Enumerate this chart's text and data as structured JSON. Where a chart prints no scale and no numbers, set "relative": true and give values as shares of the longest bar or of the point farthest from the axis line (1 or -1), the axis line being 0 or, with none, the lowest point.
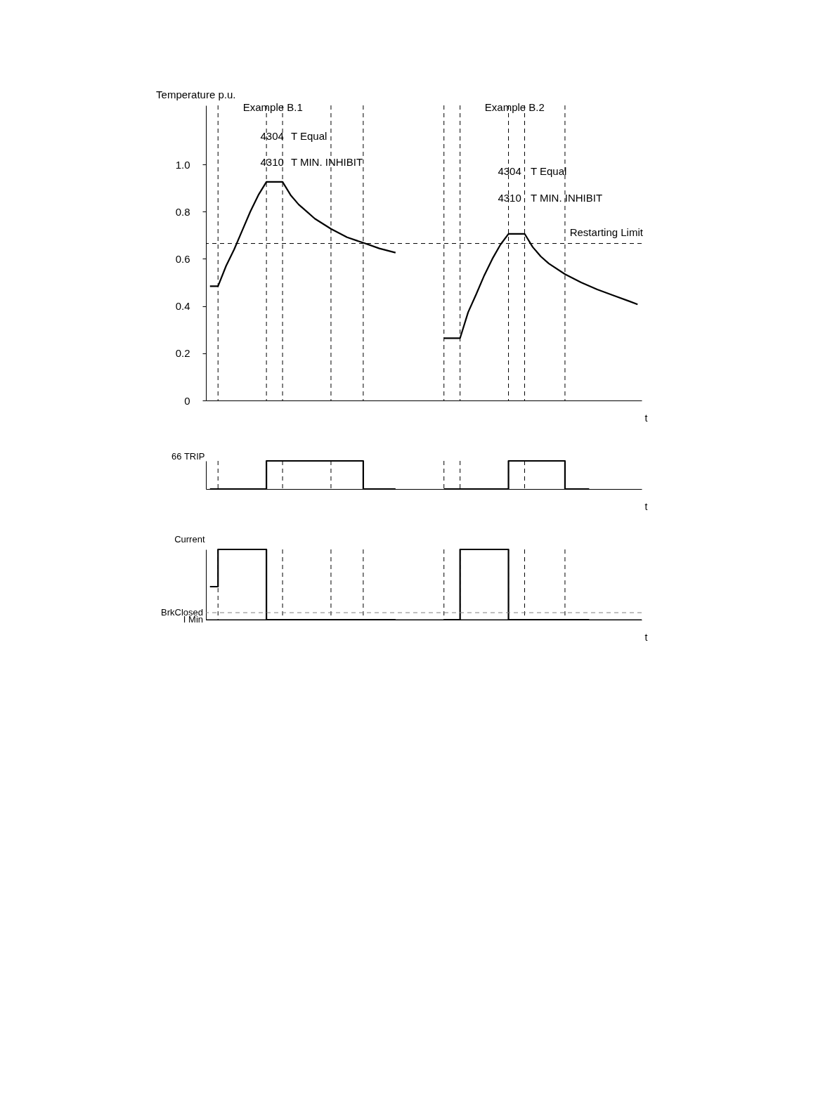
{
  "chart_data": [
    {
      "type": "line",
      "xlabel": "t",
      "ylabel": "Temperature p.u.",
      "categories": [
        null,
        null,
        null,
        null,
        null,
        null,
        null,
        null,
        null,
        null,
        null,
        null,
        null,
        null,
        null,
        null,
        null,
        null,
        null,
        null,
        null,
        null,
        null,
        null,
        null,
        null,
        null,
        null,
        null,
        null,
        null,
        null,
        null,
        null,
        null,
        null,
        null,
        null,
        null,
        null,
        null,
        null,
        null,
        null,
        null,
        null,
        null,
        null,
        null,
        null,
        null,
        null,
        null,
        null
      ],
      "ylim": [
        0,
        1.25
      ],
      "yticks": [
        0,
        0.2,
        0.4,
        0.6,
        0.8,
        {
          "value": 1,
          "label": "1.0"
        }
      ],
      "tick_labels": "y",
      "grid": "x",
      "line_style": "solid",
      "series": [
        {
          "color": "#000000",
          "values": [
            0.484,
            0.484,
            0.57,
            0.64,
            0.72,
            0.8,
            0.87,
            0.926,
            null,
            0.926,
            0.87,
            0.83,
            0.8,
            0.77,
            null,
            0.727,
            null,
            0.691,
            null,
            0.668,
            null,
            0.644,
            null,
            0.626,
            null,
            null,
            null,
            null,
            null,
            null,
            null,
            null,
            null,
            null,
            null,
            null,
            null,
            null,
            null,
            null,
            null,
            null,
            null,
            null,
            null,
            null,
            null,
            null,
            null,
            null,
            null,
            null,
            null,
            null
          ]
        },
        {
          "color": "#000000",
          "values": [
            null,
            null,
            null,
            null,
            null,
            null,
            null,
            null,
            null,
            null,
            null,
            null,
            null,
            null,
            null,
            null,
            null,
            null,
            null,
            null,
            null,
            null,
            null,
            null,
            null,
            null,
            null,
            null,
            null,
            0.264,
            null,
            0.264,
            0.374,
            0.45,
            0.53,
            0.6,
            0.66,
            0.706,
            null,
            0.706,
            0.65,
            0.61,
            0.58,
            null,
            0.535,
            null,
            0.5,
            null,
            0.47,
            null,
            0.445,
            null,
            0.42,
            0.407
          ]
        }
      ],
      "ref_lines": [
        {
          "axis": "y",
          "value": 0.665,
          "label": "Restarting Limit",
          "color": "#000000",
          "line_style": "dashed"
        }
      ],
      "annotations": [
        "Example B.1",
        "Example B.2",
        "4304",
        "T Equal",
        "4310",
        "T MIN. INHIBIT",
        "4304",
        "T Equal",
        "4310",
        "T MIN. INHIBIT"
      ]
    },
    {
      "type": "step",
      "xlabel": "t",
      "ylabel": "66 TRIP",
      "relative": true,
      "grid": "x",
      "categories": [
        null,
        null,
        null,
        null,
        null,
        null,
        null,
        null,
        null,
        null,
        null,
        null,
        null,
        null,
        null,
        null,
        null,
        null,
        null,
        null,
        null,
        null,
        null,
        null,
        null,
        null,
        null,
        null,
        null,
        null,
        null,
        null,
        null,
        null,
        null,
        null,
        null,
        null,
        null,
        null,
        null,
        null,
        null,
        null,
        null,
        null,
        null,
        null,
        null,
        null,
        null,
        null,
        null,
        null
      ],
      "tick_labels": false,
      "line_style": "solid",
      "series": [
        {
          "color": "#000000",
          "values": [
            0,
            null,
            null,
            null,
            null,
            null,
            null,
            1,
            null,
            null,
            null,
            null,
            null,
            null,
            null,
            null,
            null,
            null,
            null,
            0,
            null,
            null,
            null,
            0,
            null,
            null,
            null,
            null,
            null,
            null,
            null,
            null,
            null,
            null,
            null,
            null,
            null,
            null,
            null,
            null,
            null,
            null,
            null,
            null,
            null,
            null,
            null,
            null,
            null,
            null,
            null,
            null,
            null,
            null
          ]
        },
        {
          "color": "#000000",
          "values": [
            null,
            null,
            null,
            null,
            null,
            null,
            null,
            null,
            null,
            null,
            null,
            null,
            null,
            null,
            null,
            null,
            null,
            null,
            null,
            null,
            null,
            null,
            null,
            null,
            null,
            null,
            null,
            null,
            null,
            0,
            null,
            null,
            null,
            null,
            null,
            null,
            null,
            1,
            null,
            null,
            null,
            null,
            null,
            null,
            0,
            null,
            null,
            0,
            null,
            null,
            null,
            null,
            null,
            null
          ]
        }
      ]
    },
    {
      "type": "step",
      "xlabel": "t",
      "ylabel": "Current",
      "relative": true,
      "grid": "x",
      "categories": [
        null,
        null,
        null,
        null,
        null,
        null,
        null,
        null,
        null,
        null,
        null,
        null,
        null,
        null,
        null,
        null,
        null,
        null,
        null,
        null,
        null,
        null,
        null,
        null,
        null,
        null,
        null,
        null,
        null,
        null,
        null,
        null,
        null,
        null,
        null,
        null,
        null,
        null,
        null,
        null,
        null,
        null,
        null,
        null,
        null,
        null,
        null,
        null,
        null,
        null,
        null,
        null,
        null,
        null
      ],
      "tick_labels": false,
      "line_style": "solid",
      "series": [
        {
          "color": "#000000",
          "values": [
            0.47,
            1,
            null,
            null,
            null,
            null,
            null,
            0,
            null,
            null,
            null,
            null,
            null,
            null,
            null,
            null,
            null,
            null,
            null,
            null,
            null,
            null,
            null,
            0,
            null,
            null,
            null,
            null,
            null,
            null,
            null,
            null,
            null,
            null,
            null,
            null,
            null,
            null,
            null,
            null,
            null,
            null,
            null,
            null,
            null,
            null,
            null,
            null,
            null,
            null,
            null,
            null,
            null,
            null
          ]
        },
        {
          "color": "#000000",
          "values": [
            null,
            null,
            null,
            null,
            null,
            null,
            null,
            null,
            null,
            null,
            null,
            null,
            null,
            null,
            null,
            null,
            null,
            null,
            null,
            null,
            null,
            null,
            null,
            null,
            null,
            null,
            null,
            null,
            null,
            0,
            null,
            1,
            null,
            null,
            null,
            null,
            null,
            0,
            null,
            null,
            null,
            null,
            null,
            null,
            null,
            null,
            null,
            0,
            null,
            null,
            null,
            null,
            null,
            null
          ]
        }
      ],
      "ref_lines": [
        {
          "axis": "y",
          "value": 0.1,
          "label": "BrkClosed",
          "color": "#808080",
          "line_style": "dashed"
        },
        {
          "axis": "y",
          "value": 0,
          "label": "I Min",
          "color": "#000000",
          "line_style": "solid"
        }
      ]
    }
  ]
}
